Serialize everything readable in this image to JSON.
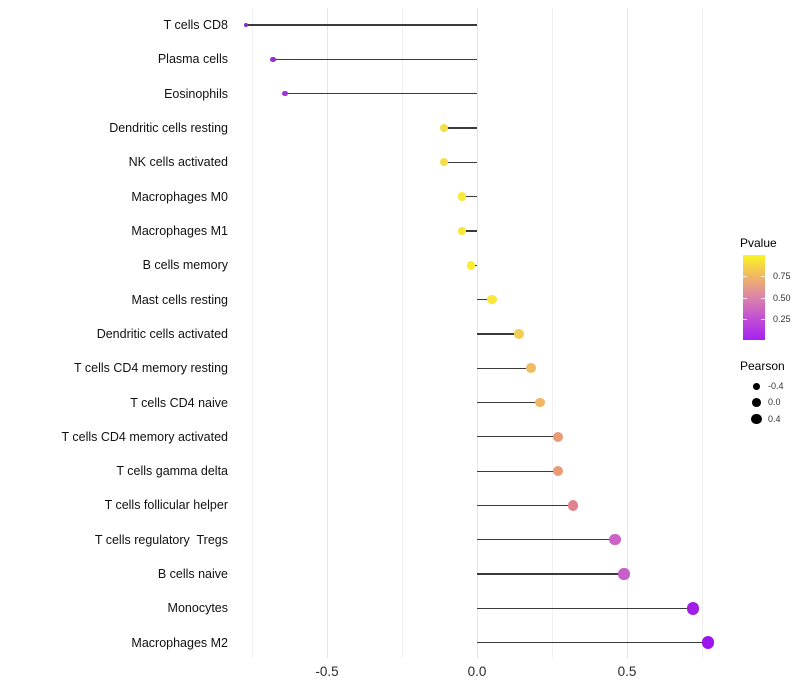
{
  "chart_data": {
    "type": "scatter",
    "subtype": "lollipop",
    "orientation": "horizontal",
    "title": "",
    "xlabel": "",
    "ylabel": "",
    "grid": true,
    "x_axis": {
      "major_ticks": [
        {
          "label": "-0.5",
          "value": -0.5
        },
        {
          "label": "0.0",
          "value": 0.0
        },
        {
          "label": "0.5",
          "value": 0.5
        }
      ],
      "minor_gridlines": [
        -0.75,
        -0.25,
        0.25,
        0.75
      ],
      "range": [
        -0.8,
        0.8
      ]
    },
    "rows": [
      {
        "label": "T cells CD8",
        "pearson": -0.77,
        "color": "#8C2BC2"
      },
      {
        "label": "Plasma cells",
        "pearson": -0.68,
        "color": "#9530CF"
      },
      {
        "label": "Eosinophils",
        "pearson": -0.64,
        "color": "#A035D8"
      },
      {
        "label": "Dendritic cells resting",
        "pearson": -0.11,
        "color": "#F5DE4B"
      },
      {
        "label": "NK cells activated",
        "pearson": -0.11,
        "color": "#F5DE4B"
      },
      {
        "label": "Macrophages M0",
        "pearson": -0.05,
        "color": "#F8E938"
      },
      {
        "label": "Macrophages M1",
        "pearson": -0.05,
        "color": "#F8E938"
      },
      {
        "label": "B cells memory",
        "pearson": -0.02,
        "color": "#FAEE2C"
      },
      {
        "label": "Mast cells resting",
        "pearson": 0.05,
        "color": "#F8E73C"
      },
      {
        "label": "Dendritic cells activated",
        "pearson": 0.14,
        "color": "#F3CE57"
      },
      {
        "label": "T cells CD4 memory resting",
        "pearson": 0.18,
        "color": "#F1BD62"
      },
      {
        "label": "T cells CD4 naive",
        "pearson": 0.21,
        "color": "#F0B75F"
      },
      {
        "label": "T cells CD4 memory activated",
        "pearson": 0.27,
        "color": "#EA9B75"
      },
      {
        "label": "T cells gamma delta",
        "pearson": 0.27,
        "color": "#EA9B75"
      },
      {
        "label": "T cells follicular helper",
        "pearson": 0.32,
        "color": "#E1838E"
      },
      {
        "label": "T cells regulatory  Tregs",
        "pearson": 0.46,
        "color": "#CB63C6"
      },
      {
        "label": "B cells naive",
        "pearson": 0.49,
        "color": "#C75FC8"
      },
      {
        "label": "Monocytes",
        "pearson": 0.72,
        "color": "#A21EE6"
      },
      {
        "label": "Macrophages M2",
        "pearson": 0.77,
        "color": "#9C15EE"
      }
    ],
    "legend_pvalue": {
      "title": "Pvalue",
      "ticks": [
        {
          "label": "0.75",
          "value": 0.75
        },
        {
          "label": "0.50",
          "value": 0.5
        },
        {
          "label": "0.25",
          "value": 0.25
        }
      ],
      "gradient_top_to_bottom": [
        "#FBF524",
        "#F0B763",
        "#DC83AC",
        "#C14FD4",
        "#A520F2"
      ],
      "value_range": [
        0,
        1
      ]
    },
    "legend_pearson": {
      "title": "Pearson",
      "items": [
        {
          "label": "-0.4",
          "value": -0.4
        },
        {
          "label": "0.0",
          "value": 0.0
        },
        {
          "label": "0.4",
          "value": 0.4
        }
      ]
    }
  },
  "colors": {
    "background": "#ffffff",
    "stem": "#3a3a3a",
    "grid_major": "#e4e4e4",
    "grid_minor": "#f1f1f1",
    "legend_dot": "#000000"
  }
}
